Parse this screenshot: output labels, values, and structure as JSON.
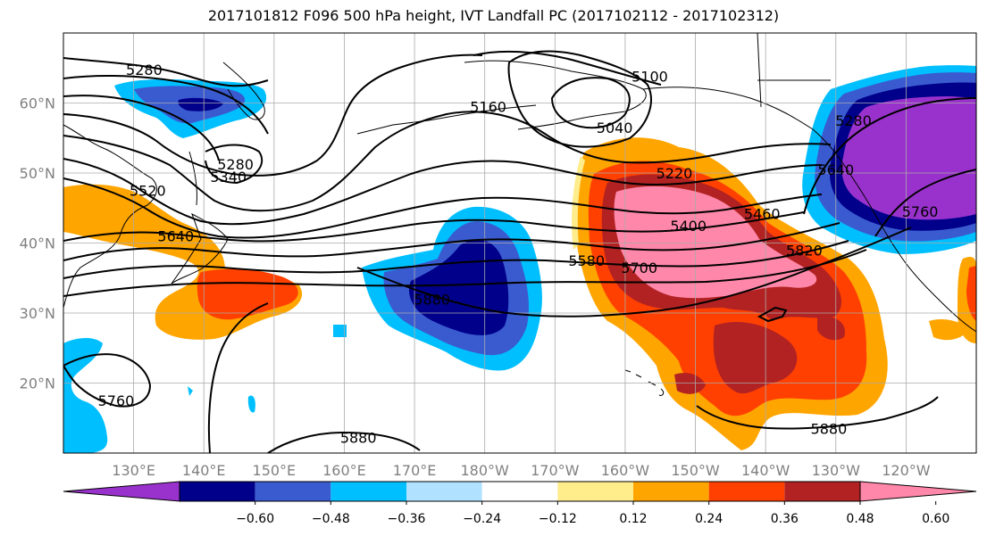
{
  "title": "2017101812 F096 500 hPa height, IVT Landfall PC (2017102112 - 2017102312)",
  "map": {
    "projection": "equirectangular",
    "lon_range": [
      120,
      250
    ],
    "lat_range": [
      10,
      70
    ],
    "lat_ticks": [
      {
        "value": 20,
        "label": "20°N"
      },
      {
        "value": 30,
        "label": "30°N"
      },
      {
        "value": 40,
        "label": "40°N"
      },
      {
        "value": 50,
        "label": "50°N"
      },
      {
        "value": 60,
        "label": "60°N"
      }
    ],
    "lon_ticks": [
      {
        "value": 130,
        "label": "130°E"
      },
      {
        "value": 140,
        "label": "140°E"
      },
      {
        "value": 150,
        "label": "150°E"
      },
      {
        "value": 160,
        "label": "160°E"
      },
      {
        "value": 170,
        "label": "170°E"
      },
      {
        "value": 180,
        "label": "180°W"
      },
      {
        "value": 190,
        "label": "170°W"
      },
      {
        "value": 200,
        "label": "160°W"
      },
      {
        "value": 210,
        "label": "150°W"
      },
      {
        "value": 220,
        "label": "140°W"
      },
      {
        "value": 230,
        "label": "130°W"
      },
      {
        "value": 240,
        "label": "120°W"
      }
    ],
    "grid": true,
    "tick_label_color": "#808080"
  },
  "contours": {
    "field": "500 hPa height",
    "labels": [
      {
        "text": "5280",
        "lon": 131.5,
        "lat": 64.8
      },
      {
        "text": "5100",
        "lon": 203.5,
        "lat": 63.8
      },
      {
        "text": "5160",
        "lon": 180.5,
        "lat": 59.5
      },
      {
        "text": "5040",
        "lon": 198.5,
        "lat": 56.5
      },
      {
        "text": "5280",
        "lon": 144.5,
        "lat": 51.3
      },
      {
        "text": "5340",
        "lon": 143.5,
        "lat": 49.5
      },
      {
        "text": "5520",
        "lon": 132.0,
        "lat": 47.5
      },
      {
        "text": "5220",
        "lon": 207.0,
        "lat": 50.0
      },
      {
        "text": "5460",
        "lon": 219.5,
        "lat": 44.2
      },
      {
        "text": "5400",
        "lon": 209.0,
        "lat": 42.5
      },
      {
        "text": "5640",
        "lon": 136.0,
        "lat": 41.0
      },
      {
        "text": "5580",
        "lon": 194.5,
        "lat": 37.5
      },
      {
        "text": "5700",
        "lon": 202.0,
        "lat": 36.5
      },
      {
        "text": "5820",
        "lon": 225.5,
        "lat": 39.0
      },
      {
        "text": "5880",
        "lon": 172.5,
        "lat": 32.0
      },
      {
        "text": "5760",
        "lon": 127.5,
        "lat": 17.5
      },
      {
        "text": "5880",
        "lon": 162.0,
        "lat": 12.2
      },
      {
        "text": "5880",
        "lon": 229.0,
        "lat": 13.5
      },
      {
        "text": "5760",
        "lon": 242.0,
        "lat": 44.5
      },
      {
        "text": "5640",
        "lon": 230.0,
        "lat": 50.5
      },
      {
        "text": "5280",
        "lon": 232.5,
        "lat": 57.5
      }
    ]
  },
  "colorbar": {
    "tick_labels": [
      "−0.60",
      "−0.48",
      "−0.36",
      "−0.24",
      "−0.12",
      "0.12",
      "0.24",
      "0.36",
      "0.48",
      "0.60"
    ],
    "bins": [
      {
        "from": -0.72,
        "to": -0.6,
        "color": "#9932cc"
      },
      {
        "from": -0.6,
        "to": -0.48,
        "color": "#00008b"
      },
      {
        "from": -0.48,
        "to": -0.36,
        "color": "#3a5bd0"
      },
      {
        "from": -0.36,
        "to": -0.24,
        "color": "#00bfff"
      },
      {
        "from": -0.24,
        "to": -0.12,
        "color": "#b0e2ff"
      },
      {
        "from": -0.12,
        "to": 0.12,
        "color": "#ffffff"
      },
      {
        "from": 0.12,
        "to": 0.24,
        "color": "#ffec8b"
      },
      {
        "from": 0.24,
        "to": 0.36,
        "color": "#ffa500"
      },
      {
        "from": 0.36,
        "to": 0.48,
        "color": "#ff4000"
      },
      {
        "from": 0.48,
        "to": 0.6,
        "color": "#b22222"
      },
      {
        "from": 0.6,
        "to": 0.72,
        "color": "#ff88aa"
      }
    ],
    "extend": "both"
  }
}
